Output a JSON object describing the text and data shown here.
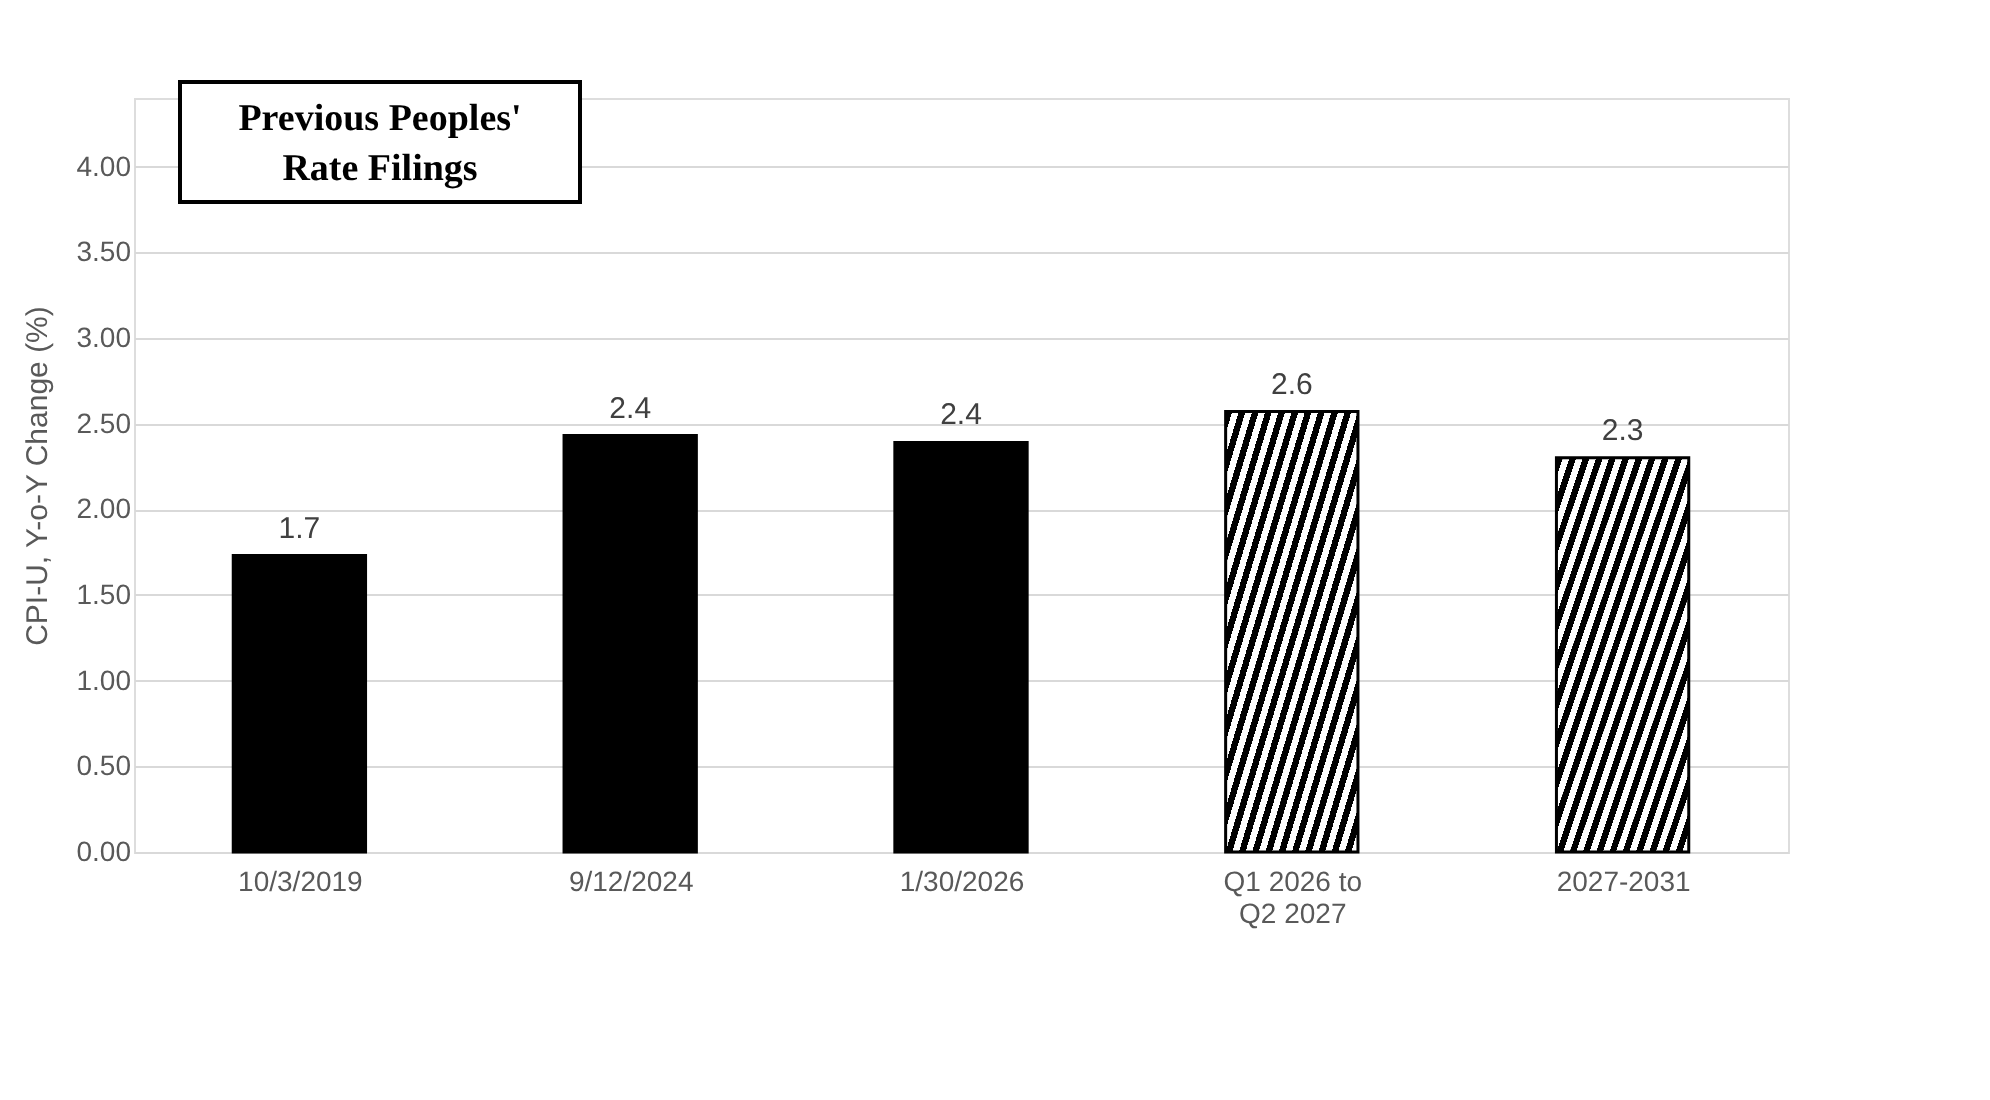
{
  "chart_data": {
    "type": "bar",
    "title": "Previous Peoples' Rate Filings",
    "ylabel": "CPI-U, Y-o-Y Change (%)",
    "categories": [
      "10/3/2019",
      "9/12/2024",
      "1/30/2026",
      "Q1 2026 to\nQ2 2027",
      "2027-2031"
    ],
    "series": [
      {
        "color": "#000000",
        "values": [
          1.73,
          2.43,
          2.39,
          null,
          null
        ],
        "value_labels": [
          "1.7",
          "2.4",
          "2.4",
          null,
          null
        ]
      },
      {
        "color": "#000000",
        "values": [
          null,
          null,
          null,
          2.57,
          2.3
        ],
        "value_labels": [
          null,
          null,
          null,
          "2.6",
          "2.3"
        ]
      }
    ],
    "ylim": [
      0,
      4.4
    ],
    "yticks": [
      {
        "value": 0,
        "label": "0.00"
      },
      {
        "value": 0.5,
        "label": "0.50"
      },
      {
        "value": 1,
        "label": "1.00"
      },
      {
        "value": 1.5,
        "label": "1.50"
      },
      {
        "value": 2,
        "label": "2.00"
      },
      {
        "value": 2.5,
        "label": "2.50"
      },
      {
        "value": 3,
        "label": "3.00"
      },
      {
        "value": 3.5,
        "label": "3.50"
      },
      {
        "value": 4,
        "label": "4.00"
      }
    ],
    "grid": "y"
  }
}
